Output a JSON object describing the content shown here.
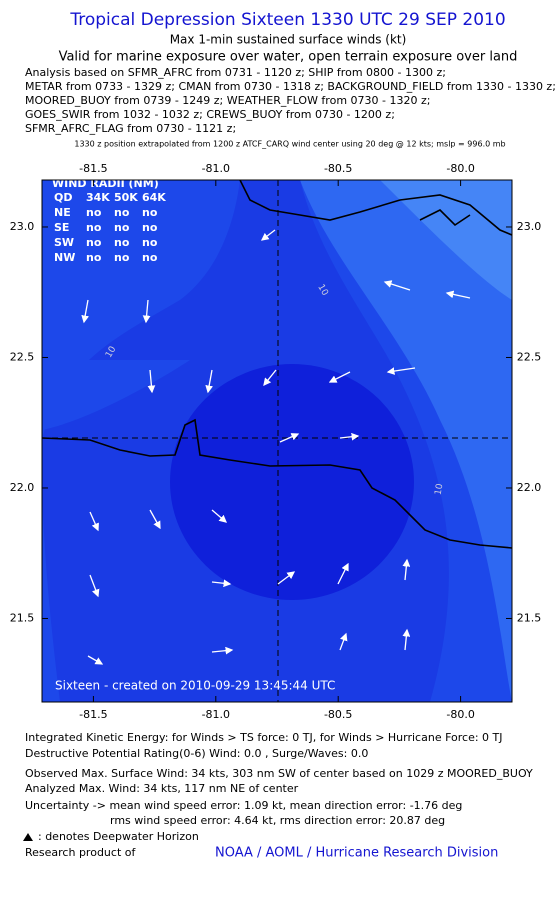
{
  "header": {
    "title": "Tropical Depression Sixteen 1330 UTC 29 SEP 2010",
    "subtitle": "Max 1-min sustained surface winds (kt)",
    "valid": "Valid for marine exposure over water, open terrain exposure over land",
    "analysis_lines": [
      "Analysis based on SFMR_AFRC from 0731 - 1120 z; SHIP from 0800 - 1300 z;",
      "METAR from 0733 - 1329 z; CMAN from 0730 - 1318 z; BACKGROUND_FIELD from 1330 - 1330 z;",
      "MOORED_BUOY from 0739 - 1249 z; WEATHER_FLOW from 0730 - 1320 z;",
      "GOES_SWIR from 1032 - 1032 z; CREWS_BUOY from 0730 - 1200 z;",
      "SFMR_AFRC_FLAG from 0730 - 1121 z;"
    ],
    "note": "1330 z position extrapolated from 1200 z ATCF_CARQ wind center using 20 deg @ 12 kts; mslp = 996.0 mb"
  },
  "map": {
    "xlim": [
      -81.71,
      -79.79
    ],
    "ylim": [
      21.18,
      23.18
    ],
    "xticks": [
      -81.5,
      {
        "value": -81,
        "label": "-81.0"
      },
      -80.5,
      {
        "value": -80,
        "label": "-80.0"
      }
    ],
    "yticks": [
      {
        "value": 23,
        "label": "23.0"
      },
      22.5,
      {
        "value": 22,
        "label": "22.0"
      },
      21.5
    ],
    "radii_table": {
      "title": "WIND RADII (NM)",
      "header": [
        "QD",
        "34K",
        "50K",
        "64K"
      ],
      "rows": [
        [
          "NE",
          "no",
          "no",
          "no"
        ],
        [
          "SE",
          "no",
          "no",
          "no"
        ],
        [
          "SW",
          "no",
          "no",
          "no"
        ],
        [
          "NW",
          "no",
          "no",
          "no"
        ]
      ]
    },
    "contour_labels": [
      "10",
      "10",
      "10"
    ],
    "credit": "Sixteen - created on 2010-09-29 13:45:44 UTC"
  },
  "footer": {
    "lines": [
      "Integrated Kinetic Energy:  for Winds > TS force: 0 TJ,  for Winds > Hurricane Force: 0 TJ",
      "Destructive Potential Rating(0-6)   Wind: 0.0 , Surge/Waves: 0.0",
      "Observed Max. Surface Wind: 34 kts, 303 nm SW of center based on 1029 z MOORED_BUOY",
      "Analyzed Max. Wind: 34 kts, 117 nm NE of center",
      "Uncertainty -> mean wind speed error: 1.09 kt,   mean direction error:  -1.76 deg",
      "rms wind speed error: 4.64 kt,   rms direction error: 20.87 deg"
    ],
    "legend": ": denotes Deepwater Horizon",
    "research": "Research product of",
    "link": "NOAA / AOML / Hurricane Research Division"
  }
}
